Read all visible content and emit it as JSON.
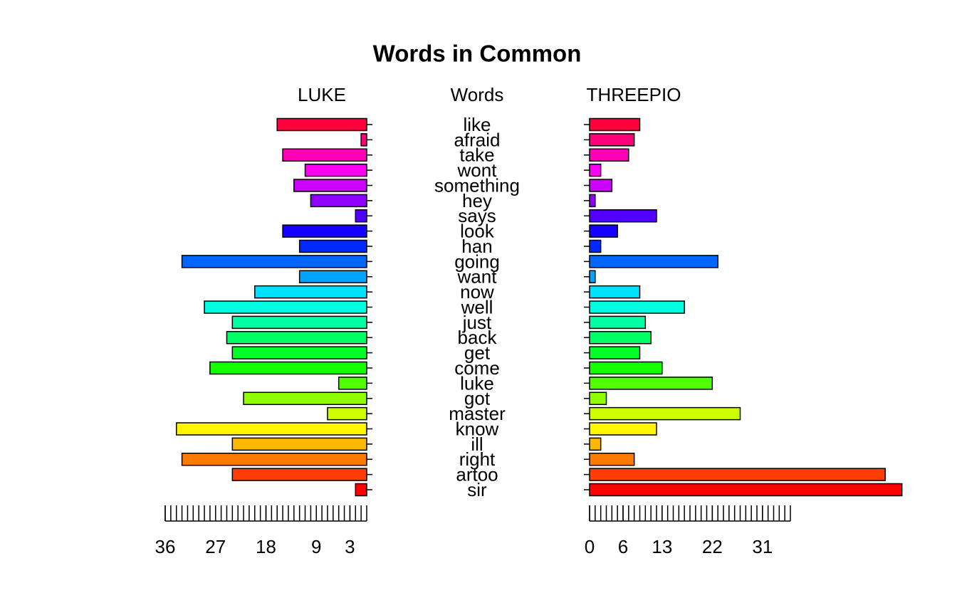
{
  "chart_data": {
    "type": "pyramid",
    "title": "Words in Common",
    "center_label": "Words",
    "categories": [
      "sir",
      "artoo",
      "right",
      "ill",
      "know",
      "master",
      "got",
      "luke",
      "come",
      "get",
      "back",
      "just",
      "well",
      "now",
      "want",
      "going",
      "han",
      "look",
      "says",
      "hey",
      "something",
      "wont",
      "take",
      "afraid",
      "like"
    ],
    "colors": [
      "#FF0000",
      "#FF3D00",
      "#FF7A00",
      "#FFB800",
      "#FFF500",
      "#CCFF00",
      "#8FFF00",
      "#52FF00",
      "#14FF00",
      "#00FF29",
      "#00FF66",
      "#00FFA3",
      "#00FFE0",
      "#00E0FF",
      "#00A3FF",
      "#0066FF",
      "#0029FF",
      "#1400FF",
      "#5200FF",
      "#8F00FF",
      "#CC00FF",
      "#FF00F5",
      "#FF00B8",
      "#FF007A",
      "#FF003D"
    ],
    "series": [
      {
        "name": "LUKE",
        "values": [
          2,
          24,
          33,
          24,
          34,
          7,
          22,
          5,
          28,
          24,
          25,
          24,
          29,
          20,
          12,
          33,
          12,
          15,
          2,
          10,
          13,
          11,
          15,
          1,
          16
        ],
        "xlim": [
          0,
          36
        ],
        "xticks": [
          36,
          27,
          18,
          9,
          3
        ]
      },
      {
        "name": "THREEPIO",
        "values": [
          56,
          53,
          8,
          2,
          12,
          27,
          3,
          22,
          13,
          9,
          11,
          10,
          17,
          9,
          1,
          23,
          2,
          5,
          12,
          1,
          4,
          2,
          7,
          8,
          9
        ],
        "xlim": [
          0,
          36
        ],
        "xticks": [
          0,
          6,
          13,
          22,
          31
        ]
      }
    ]
  }
}
